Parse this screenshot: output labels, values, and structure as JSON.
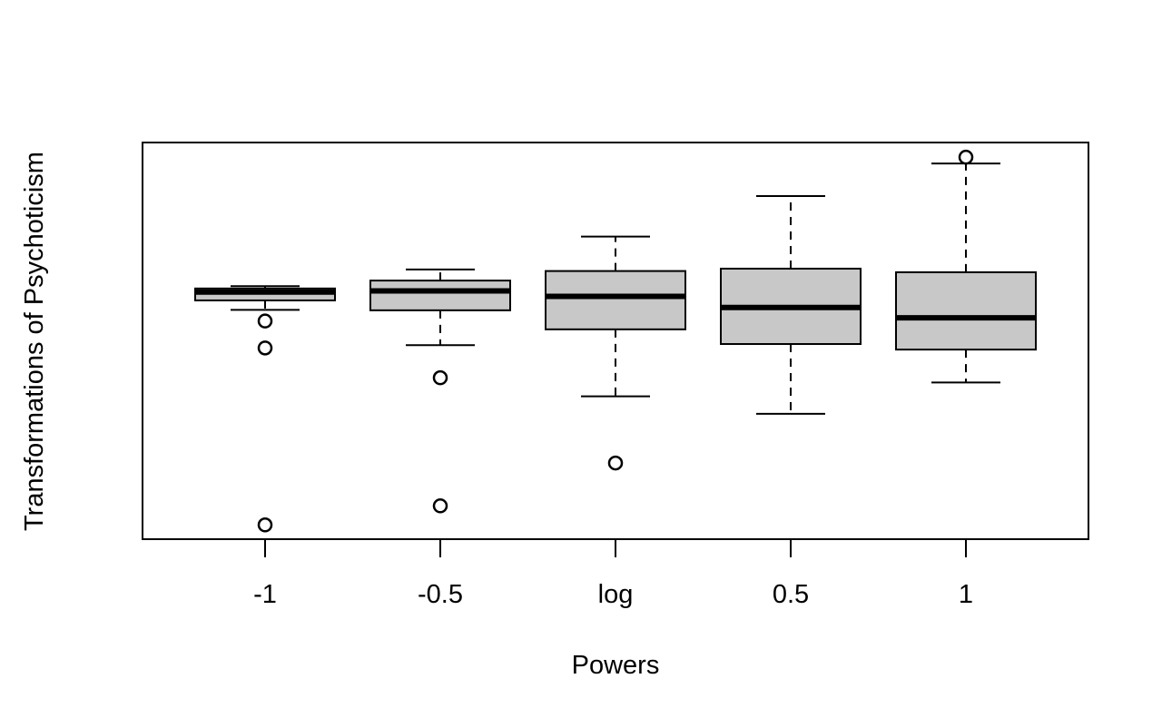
{
  "chart_data": {
    "type": "box",
    "title": "",
    "xlabel": "Powers",
    "ylabel": "Transformations of Psychoticism",
    "y_axis_ticks_shown": false,
    "value_units": "relative plot height (0 = bottom of plot region, 1 = top)",
    "ylim": [
      0,
      1
    ],
    "grid": false,
    "legend": "none",
    "box_fill_color": "#c8c8c8",
    "line_color": "#000000",
    "categories": [
      "-1",
      "-0.5",
      "log",
      "0.5",
      "1"
    ],
    "boxes": [
      {
        "name": "-1",
        "whisker_low": 0.578,
        "q1": 0.602,
        "median": 0.623,
        "q3": 0.632,
        "whisker_high": 0.638,
        "outliers": [
          0.55,
          0.482,
          0.036
        ]
      },
      {
        "name": "-0.5",
        "whisker_low": 0.489,
        "q1": 0.577,
        "median": 0.626,
        "q3": 0.652,
        "whisker_high": 0.68,
        "outliers": [
          0.407,
          0.084
        ]
      },
      {
        "name": "log",
        "whisker_low": 0.36,
        "q1": 0.529,
        "median": 0.612,
        "q3": 0.676,
        "whisker_high": 0.763,
        "outliers": [
          0.192
        ]
      },
      {
        "name": "0.5",
        "whisker_low": 0.316,
        "q1": 0.492,
        "median": 0.584,
        "q3": 0.682,
        "whisker_high": 0.865,
        "outliers": []
      },
      {
        "name": "1",
        "whisker_low": 0.395,
        "q1": 0.478,
        "median": 0.558,
        "q3": 0.673,
        "whisker_high": 0.947,
        "outliers": [
          0.963
        ]
      }
    ]
  }
}
